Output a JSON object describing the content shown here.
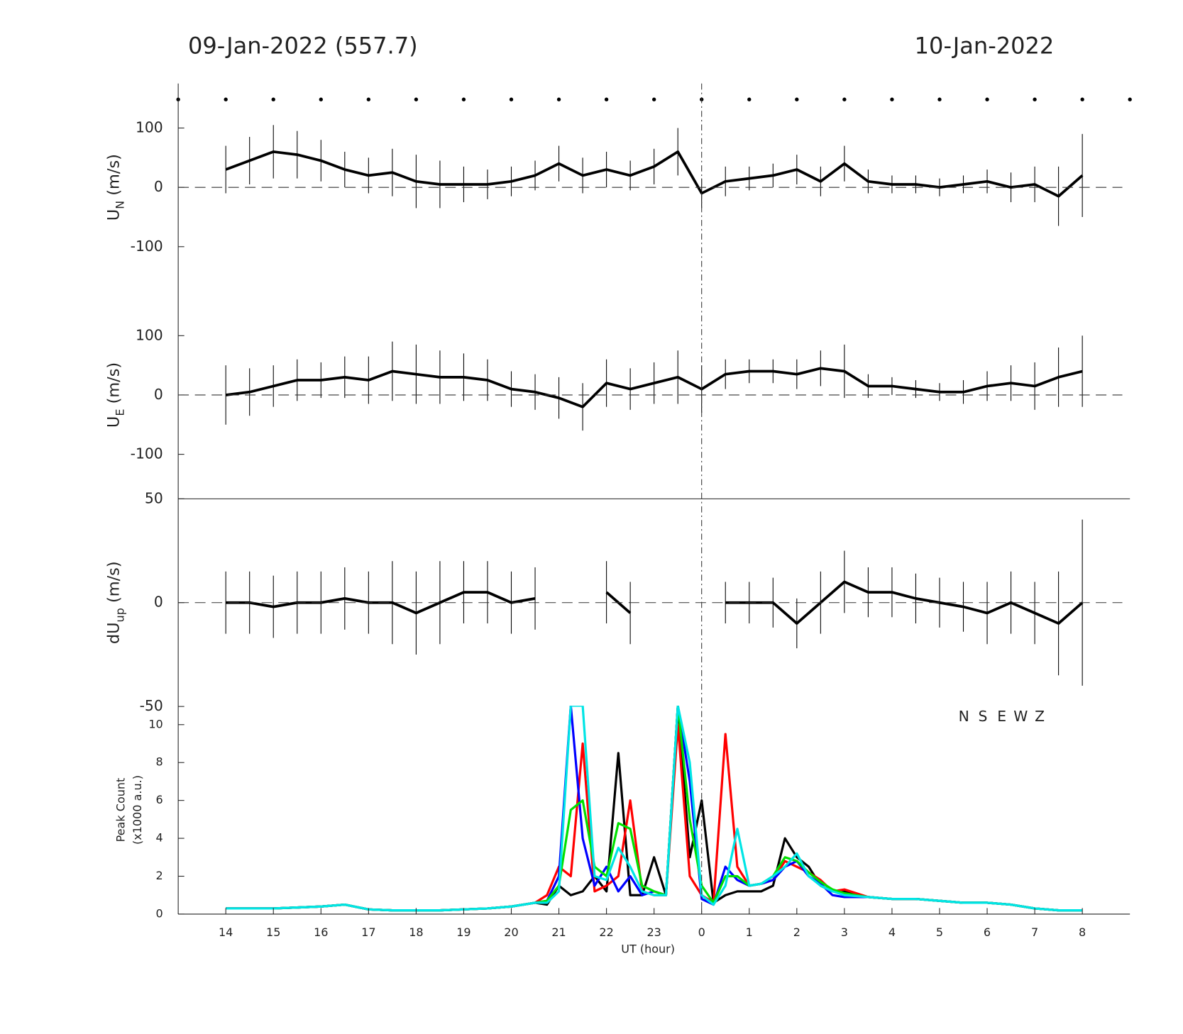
{
  "header": {
    "left": "09-Jan-2022 (557.7)",
    "right": "10-Jan-2022"
  },
  "day_boundary": 24,
  "chart_data": [
    {
      "type": "errorbar",
      "ylabel": [
        "U",
        "N",
        " (m/s)"
      ],
      "x": [
        14,
        14.5,
        15,
        15.5,
        16,
        16.5,
        17,
        17.5,
        18,
        18.5,
        19,
        19.5,
        20,
        20.5,
        21,
        21.5,
        22,
        22.5,
        23,
        23.5,
        24,
        24.5,
        25,
        25.5,
        26,
        26.5,
        27,
        27.5,
        28,
        28.5,
        29,
        29.5,
        30,
        30.5,
        31,
        31.5,
        32
      ],
      "xlim": [
        13,
        33
      ],
      "ylim": [
        -175,
        175
      ],
      "yticks": [
        -100,
        0,
        100
      ],
      "reference_line": 0,
      "series": [
        {
          "color": "#000000",
          "values": [
            30,
            45,
            60,
            55,
            45,
            30,
            20,
            25,
            10,
            5,
            5,
            5,
            10,
            20,
            40,
            20,
            30,
            20,
            35,
            60,
            -10,
            10,
            15,
            20,
            30,
            10,
            40,
            10,
            5,
            5,
            0,
            5,
            10,
            0,
            5,
            -15,
            20
          ],
          "errors": [
            40,
            40,
            45,
            40,
            35,
            30,
            30,
            40,
            45,
            40,
            30,
            25,
            25,
            25,
            30,
            30,
            30,
            25,
            30,
            40,
            25,
            25,
            20,
            20,
            25,
            25,
            30,
            20,
            15,
            15,
            15,
            15,
            20,
            25,
            30,
            50,
            70
          ]
        }
      ]
    },
    {
      "type": "errorbar",
      "ylabel": [
        "U",
        "E",
        " (m/s)"
      ],
      "x": [
        14,
        14.5,
        15,
        15.5,
        16,
        16.5,
        17,
        17.5,
        18,
        18.5,
        19,
        19.5,
        20,
        20.5,
        21,
        21.5,
        22,
        22.5,
        23,
        23.5,
        24,
        24.5,
        25,
        25.5,
        26,
        26.5,
        27,
        27.5,
        28,
        28.5,
        29,
        29.5,
        30,
        30.5,
        31,
        31.5,
        32
      ],
      "xlim": [
        13,
        33
      ],
      "ylim": [
        -175,
        175
      ],
      "yticks": [
        -100,
        0,
        100
      ],
      "reference_line": 0,
      "series": [
        {
          "color": "#000000",
          "values": [
            0,
            5,
            15,
            25,
            25,
            30,
            25,
            40,
            35,
            30,
            30,
            25,
            10,
            5,
            -5,
            -20,
            20,
            10,
            20,
            30,
            10,
            35,
            40,
            40,
            35,
            45,
            40,
            15,
            15,
            10,
            5,
            5,
            15,
            20,
            15,
            30,
            40
          ],
          "errors": [
            50,
            40,
            35,
            35,
            30,
            35,
            40,
            50,
            50,
            45,
            40,
            35,
            30,
            30,
            35,
            40,
            40,
            35,
            35,
            45,
            40,
            25,
            20,
            20,
            25,
            30,
            45,
            20,
            15,
            15,
            15,
            20,
            25,
            30,
            40,
            50,
            60
          ]
        }
      ]
    },
    {
      "type": "errorbar",
      "ylabel": [
        "dU",
        "up",
        " (m/s)"
      ],
      "x": [
        14,
        14.5,
        15,
        15.5,
        16,
        16.5,
        17,
        17.5,
        18,
        18.5,
        19,
        19.5,
        20,
        20.5,
        21,
        21.5,
        22,
        22.5,
        23,
        23.5,
        24,
        24.5,
        25,
        25.5,
        26,
        26.5,
        27,
        27.5,
        28,
        28.5,
        29,
        29.5,
        30,
        30.5,
        31,
        31.5,
        32
      ],
      "xlim": [
        13,
        33
      ],
      "ylim": [
        -50,
        50
      ],
      "yticks": [
        -50,
        0,
        50
      ],
      "reference_line": 0,
      "series": [
        {
          "color": "#000000",
          "values": [
            0,
            0,
            -2,
            0,
            0,
            2,
            0,
            0,
            -5,
            0,
            5,
            5,
            0,
            2,
            null,
            null,
            5,
            -5,
            null,
            null,
            null,
            0,
            0,
            0,
            -10,
            0,
            10,
            5,
            5,
            2,
            0,
            -2,
            -5,
            0,
            -5,
            -10,
            0
          ],
          "errors": [
            15,
            15,
            15,
            15,
            15,
            15,
            15,
            20,
            20,
            20,
            15,
            15,
            15,
            15,
            null,
            null,
            15,
            15,
            null,
            null,
            null,
            10,
            10,
            12,
            12,
            15,
            15,
            12,
            12,
            12,
            12,
            12,
            15,
            15,
            15,
            25,
            40
          ]
        }
      ]
    },
    {
      "type": "line",
      "ylabel": [
        "Peak Count",
        "(x1000 a.u.)"
      ],
      "xlabel": "UT (hour)",
      "x": [
        14,
        14.5,
        15,
        15.5,
        16,
        16.5,
        17,
        17.5,
        18,
        18.5,
        19,
        19.5,
        20,
        20.5,
        20.75,
        21,
        21.25,
        21.5,
        21.75,
        22,
        22.25,
        22.5,
        22.75,
        23,
        23.25,
        23.5,
        23.75,
        24,
        24.25,
        24.5,
        24.75,
        25,
        25.25,
        25.5,
        25.75,
        26,
        26.25,
        26.5,
        26.75,
        27,
        27.5,
        28,
        28.5,
        29,
        29.5,
        30,
        30.5,
        31,
        31.5,
        32
      ],
      "xlim": [
        13,
        33
      ],
      "ylim": [
        0,
        11
      ],
      "yticks": [
        0,
        2,
        4,
        6,
        8,
        10
      ],
      "xticks": [
        14,
        15,
        16,
        17,
        18,
        19,
        20,
        21,
        22,
        23,
        {
          "value": 24,
          "label": "0"
        },
        {
          "value": 25,
          "label": "1"
        },
        {
          "value": 26,
          "label": "2"
        },
        {
          "value": 27,
          "label": "3"
        },
        {
          "value": 28,
          "label": "4"
        },
        {
          "value": 29,
          "label": "5"
        },
        {
          "value": 30,
          "label": "6"
        },
        {
          "value": 31,
          "label": "7"
        },
        {
          "value": 32,
          "label": "8"
        }
      ],
      "legend": "upper right",
      "series": [
        {
          "name": "N",
          "color": "#000000",
          "values": [
            0.3,
            0.3,
            0.3,
            0.35,
            0.4,
            0.5,
            0.25,
            0.2,
            0.2,
            0.2,
            0.25,
            0.3,
            0.4,
            0.6,
            0.5,
            1.5,
            1.0,
            1.2,
            2.0,
            1.2,
            8.5,
            1.0,
            1.0,
            3.0,
            1.0,
            11,
            3,
            6,
            0.6,
            1.0,
            1.2,
            1.2,
            1.2,
            1.5,
            4.0,
            3.0,
            2.5,
            1.5,
            1.2,
            1.2,
            0.9,
            0.8,
            0.8,
            0.7,
            0.6,
            0.6,
            0.5,
            0.3,
            0.2,
            0.2
          ]
        },
        {
          "name": "S",
          "color": "#ff0000",
          "values": [
            0.3,
            0.3,
            0.3,
            0.35,
            0.4,
            0.5,
            0.25,
            0.2,
            0.2,
            0.2,
            0.25,
            0.3,
            0.4,
            0.6,
            1.0,
            2.5,
            2.0,
            9,
            1.2,
            1.5,
            2.0,
            6,
            1.2,
            1.0,
            1.0,
            10,
            2,
            1.0,
            0.6,
            9.5,
            2.5,
            1.5,
            1.6,
            1.8,
            2.8,
            2.5,
            2.2,
            1.8,
            1.2,
            1.3,
            0.9,
            0.8,
            0.8,
            0.7,
            0.6,
            0.6,
            0.5,
            0.3,
            0.2,
            0.2
          ]
        },
        {
          "name": "E",
          "color": "#0000ff",
          "values": [
            0.3,
            0.3,
            0.3,
            0.35,
            0.4,
            0.5,
            0.25,
            0.2,
            0.2,
            0.2,
            0.25,
            0.3,
            0.4,
            0.6,
            0.7,
            2.0,
            11,
            4,
            1.5,
            2.5,
            1.2,
            2.0,
            1.0,
            1.2,
            1.0,
            11,
            7,
            0.8,
            0.5,
            2.5,
            1.8,
            1.5,
            1.6,
            1.8,
            2.5,
            2.8,
            2.0,
            1.6,
            1.0,
            0.9,
            0.9,
            0.8,
            0.8,
            0.7,
            0.6,
            0.6,
            0.5,
            0.3,
            0.2,
            0.2
          ]
        },
        {
          "name": "W",
          "color": "#00e000",
          "values": [
            0.3,
            0.3,
            0.3,
            0.35,
            0.4,
            0.5,
            0.25,
            0.2,
            0.2,
            0.2,
            0.25,
            0.3,
            0.4,
            0.6,
            0.7,
            1.5,
            5.5,
            6,
            2.5,
            2.0,
            4.8,
            4.5,
            1.5,
            1.2,
            1.0,
            11,
            5,
            1.5,
            0.6,
            2.0,
            2.0,
            1.5,
            1.6,
            2.0,
            3.0,
            2.8,
            2.2,
            1.7,
            1.3,
            1.1,
            0.9,
            0.8,
            0.8,
            0.7,
            0.6,
            0.6,
            0.5,
            0.3,
            0.2,
            0.2
          ]
        },
        {
          "name": "Z",
          "color": "#00e5e5",
          "values": [
            0.3,
            0.3,
            0.3,
            0.35,
            0.4,
            0.5,
            0.25,
            0.2,
            0.2,
            0.2,
            0.25,
            0.3,
            0.4,
            0.6,
            0.6,
            1.2,
            11,
            11,
            2.0,
            1.8,
            3.5,
            2.5,
            1.2,
            1.0,
            1.0,
            11,
            8,
            1.0,
            0.5,
            1.5,
            4.5,
            1.5,
            1.6,
            2.0,
            2.5,
            3.2,
            2.0,
            1.5,
            1.2,
            1.0,
            0.9,
            0.8,
            0.8,
            0.7,
            0.6,
            0.6,
            0.5,
            0.3,
            0.2,
            0.2
          ]
        }
      ]
    }
  ]
}
